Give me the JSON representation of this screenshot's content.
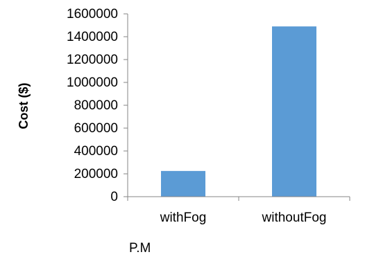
{
  "chart_data": {
    "type": "bar",
    "categories": [
      "withFog",
      "withoutFog"
    ],
    "values": [
      225000,
      1490000
    ],
    "xlabel": "P.M",
    "ylabel": "Cost ($)",
    "ylim": [
      0,
      1600000
    ],
    "yticks": [
      0,
      200000,
      400000,
      600000,
      800000,
      1000000,
      1200000,
      1400000,
      1600000
    ],
    "grid": false,
    "legend": "none",
    "bar_color": "#5b9bd5",
    "axis_color": "#868686"
  }
}
